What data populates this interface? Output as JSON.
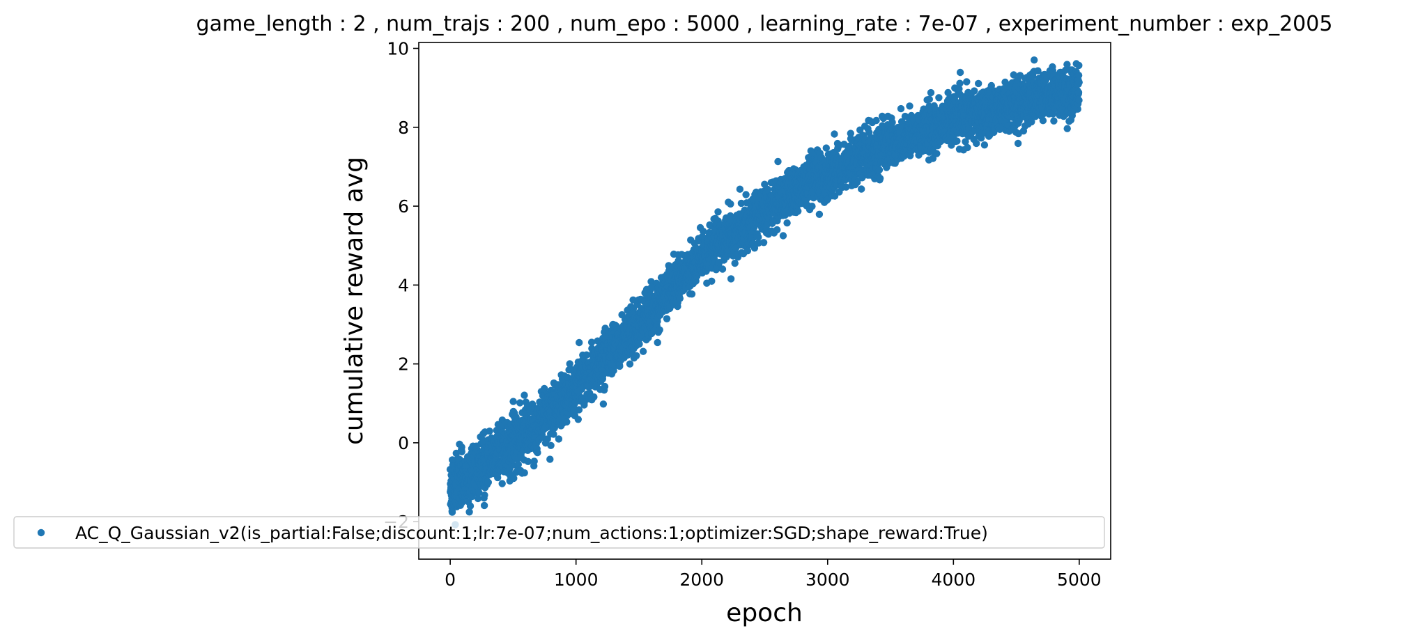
{
  "chart_data": {
    "type": "scatter",
    "title": "game_length : 2 , num_trajs : 200 , num_epo : 5000 , learning_rate : 7e-07 , experiment_number : exp_2005",
    "xlabel": "epoch",
    "ylabel": "cumulative reward avg",
    "xlim": [
      -250,
      5250
    ],
    "ylim": [
      -2.95,
      10.15
    ],
    "xticks": [
      0,
      1000,
      2000,
      3000,
      4000,
      5000
    ],
    "yticks": [
      -2,
      0,
      2,
      4,
      6,
      8,
      10
    ],
    "grid": false,
    "legend_position": "lower-left",
    "series": [
      {
        "name": "AC_Q_Gaussian_v2(is_partial:False;discount:1;lr:7e-07;num_actions:1;optimizer:SGD;shape_reward:True)",
        "color": "#1f77b4",
        "marker": "circle",
        "point_count": 5000,
        "x_range": [
          0,
          4999
        ],
        "trend_points": [
          {
            "x": 0,
            "y": -1.1
          },
          {
            "x": 250,
            "y": -0.6
          },
          {
            "x": 500,
            "y": 0.0
          },
          {
            "x": 750,
            "y": 0.6
          },
          {
            "x": 1000,
            "y": 1.4
          },
          {
            "x": 1250,
            "y": 2.2
          },
          {
            "x": 1500,
            "y": 3.0
          },
          {
            "x": 1750,
            "y": 3.9
          },
          {
            "x": 2000,
            "y": 4.7
          },
          {
            "x": 2250,
            "y": 5.3
          },
          {
            "x": 2500,
            "y": 5.9
          },
          {
            "x": 2750,
            "y": 6.4
          },
          {
            "x": 3000,
            "y": 6.8
          },
          {
            "x": 3250,
            "y": 7.2
          },
          {
            "x": 3500,
            "y": 7.6
          },
          {
            "x": 3750,
            "y": 7.9
          },
          {
            "x": 4000,
            "y": 8.2
          },
          {
            "x": 4250,
            "y": 8.4
          },
          {
            "x": 4500,
            "y": 8.6
          },
          {
            "x": 4750,
            "y": 8.8
          },
          {
            "x": 5000,
            "y": 8.95
          }
        ],
        "noise_std": 0.3
      }
    ]
  }
}
